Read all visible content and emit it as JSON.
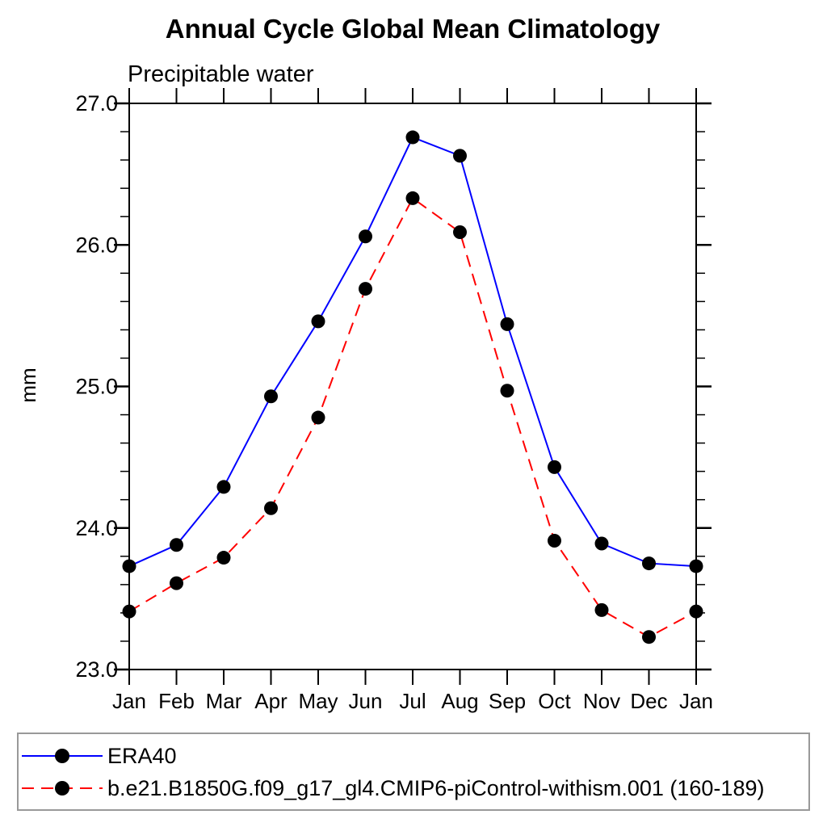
{
  "chart_data": {
    "type": "line",
    "title": "Annual Cycle Global Mean Climatology",
    "subtitle": "Precipitable water",
    "ylabel": "mm",
    "xlabel": "",
    "categories": [
      "Jan",
      "Feb",
      "Mar",
      "Apr",
      "May",
      "Jun",
      "Jul",
      "Aug",
      "Sep",
      "Oct",
      "Nov",
      "Dec",
      "Jan"
    ],
    "ylim": [
      23.0,
      27.0
    ],
    "ytick_major_step": 1.0,
    "ytick_minor_step": 0.2,
    "grid": false,
    "legend_position": "bottom-left-box",
    "series": [
      {
        "name": "ERA40",
        "color": "#0000ff",
        "line_style": "solid",
        "marker": "filled-black-circle",
        "values": [
          23.73,
          23.88,
          24.29,
          24.93,
          25.46,
          26.06,
          26.76,
          26.63,
          25.44,
          24.43,
          23.89,
          23.75,
          23.73
        ]
      },
      {
        "name": "b.e21.B1850G.f09_g17_gl4.CMIP6-piControl-withism.001 (160-189)",
        "color": "#ff0000",
        "line_style": "dashed",
        "marker": "filled-black-circle",
        "values": [
          23.41,
          23.61,
          23.79,
          24.14,
          24.78,
          25.69,
          26.33,
          26.09,
          24.97,
          23.91,
          23.42,
          23.23,
          23.41
        ]
      }
    ],
    "colors": {
      "axis": "#000000",
      "marker": "#000000",
      "legend_border": "#999999",
      "background": "#ffffff"
    }
  }
}
